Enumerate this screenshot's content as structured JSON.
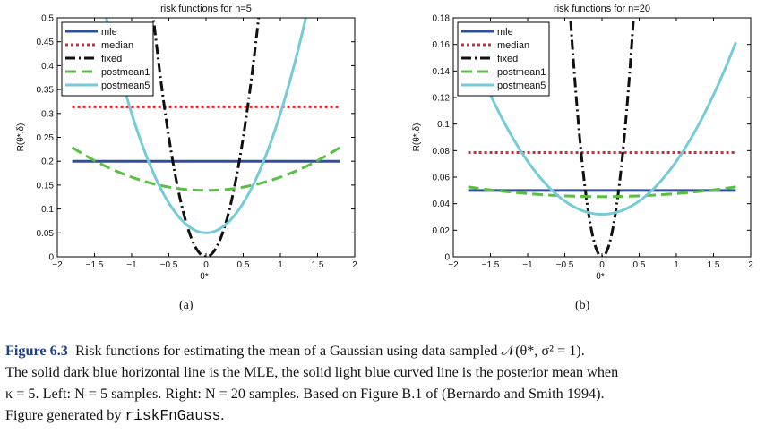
{
  "chart_data": [
    {
      "type": "line",
      "title": "risk functions for n=5",
      "xlabel": "θ*",
      "ylabel": "R(θ*,δ)",
      "xlim": [
        -2,
        2
      ],
      "ylim": [
        0,
        0.5
      ],
      "xticks": [
        -2,
        -1.5,
        -1,
        -0.5,
        0,
        0.5,
        1,
        1.5,
        2
      ],
      "xtick_labels": [
        "−2",
        "−1.5",
        "−1",
        "−0.5",
        "0",
        "0.5",
        "1",
        "1.5",
        "2"
      ],
      "yticks": [
        0,
        0.05,
        0.1,
        0.15,
        0.2,
        0.25,
        0.3,
        0.35,
        0.4,
        0.45,
        0.5
      ],
      "ytick_labels": [
        "0",
        "0.05",
        "0.1",
        "0.15",
        "0.2",
        "0.25",
        "0.3",
        "0.35",
        "0.4",
        "0.45",
        "0.5"
      ],
      "grid": false,
      "legend_position": "top-left",
      "x": [
        -1.8,
        -1.6,
        -1.4,
        -1.2,
        -1.0,
        -0.8,
        -0.6,
        -0.4,
        -0.2,
        0.0,
        0.2,
        0.4,
        0.6,
        0.8,
        1.0,
        1.2,
        1.4,
        1.6,
        1.8
      ],
      "series": [
        {
          "name": "mle",
          "color": "#2e4fa0",
          "style": "solid",
          "values": [
            0.2,
            0.2,
            0.2,
            0.2,
            0.2,
            0.2,
            0.2,
            0.2,
            0.2,
            0.2,
            0.2,
            0.2,
            0.2,
            0.2,
            0.2,
            0.2,
            0.2,
            0.2,
            0.2
          ]
        },
        {
          "name": "median",
          "color": "#e8222e",
          "style": "dotted",
          "values": [
            0.314,
            0.314,
            0.314,
            0.314,
            0.314,
            0.314,
            0.314,
            0.314,
            0.314,
            0.314,
            0.314,
            0.314,
            0.314,
            0.314,
            0.314,
            0.314,
            0.314,
            0.314,
            0.314
          ]
        },
        {
          "name": "fixed",
          "color": "#111111",
          "style": "dashdot",
          "values": [
            null,
            null,
            null,
            null,
            null,
            null,
            0.36,
            0.16,
            0.04,
            0.0,
            0.04,
            0.16,
            0.36,
            null,
            null,
            null,
            null,
            null,
            null
          ]
        },
        {
          "name": "postmean1",
          "color": "#5bbf45",
          "style": "dashed",
          "values": [
            0.229,
            0.209,
            0.191,
            0.176,
            0.163,
            0.153,
            0.146,
            0.141,
            0.139,
            0.139,
            0.139,
            0.141,
            0.146,
            0.153,
            0.163,
            0.176,
            0.191,
            0.209,
            0.229
          ]
        },
        {
          "name": "postmean5",
          "color": "#76cbd9",
          "style": "solid",
          "values": [
            null,
            null,
            0.484,
            0.409,
            0.319,
            0.229,
            0.139,
            0.094,
            0.059,
            0.049,
            0.059,
            0.094,
            0.139,
            0.229,
            0.319,
            0.409,
            0.484,
            null,
            null
          ]
        }
      ]
    },
    {
      "type": "line",
      "title": "risk functions for n=20",
      "xlabel": "θ*",
      "ylabel": "R(θ*,δ)",
      "xlim": [
        -2,
        2
      ],
      "ylim": [
        0,
        0.18
      ],
      "xticks": [
        -2,
        -1.5,
        -1,
        -0.5,
        0,
        0.5,
        1,
        1.5,
        2
      ],
      "xtick_labels": [
        "−2",
        "−1.5",
        "−1",
        "−0.5",
        "0",
        "0.5",
        "1",
        "1.5",
        "2"
      ],
      "yticks": [
        0,
        0.02,
        0.04,
        0.06,
        0.08,
        0.1,
        0.12,
        0.14,
        0.16,
        0.18
      ],
      "ytick_labels": [
        "0",
        "0.02",
        "0.04",
        "0.06",
        "0.08",
        "0.1",
        "0.12",
        "0.14",
        "0.16",
        "0.18"
      ],
      "grid": false,
      "legend_position": "top-left",
      "x": [
        -1.8,
        -1.6,
        -1.4,
        -1.2,
        -1.0,
        -0.8,
        -0.6,
        -0.4,
        -0.2,
        0.0,
        0.2,
        0.4,
        0.6,
        0.8,
        1.0,
        1.2,
        1.4,
        1.6,
        1.8
      ],
      "series": [
        {
          "name": "mle",
          "color": "#2e4fa0",
          "style": "solid",
          "values": [
            0.05,
            0.05,
            0.05,
            0.05,
            0.05,
            0.05,
            0.05,
            0.05,
            0.05,
            0.05,
            0.05,
            0.05,
            0.05,
            0.05,
            0.05,
            0.05,
            0.05,
            0.05,
            0.05
          ]
        },
        {
          "name": "median",
          "color": "#e8222e",
          "style": "dotted",
          "values": [
            0.0785,
            0.0785,
            0.0785,
            0.0785,
            0.0785,
            0.0785,
            0.0785,
            0.0785,
            0.0785,
            0.0785,
            0.0785,
            0.0785,
            0.0785,
            0.0785,
            0.0785,
            0.0785,
            0.0785,
            0.0785,
            0.0785
          ]
        },
        {
          "name": "fixed",
          "color": "#111111",
          "style": "dashdot",
          "values": [
            null,
            null,
            null,
            null,
            null,
            null,
            null,
            0.16,
            0.04,
            0.0,
            0.04,
            0.16,
            null,
            null,
            null,
            null,
            null,
            null,
            null
          ]
        },
        {
          "name": "postmean1",
          "color": "#5bbf45",
          "style": "dashed",
          "values": [
            0.0533,
            0.0512,
            0.0494,
            0.0479,
            0.0466,
            0.0456,
            0.0449,
            0.0444,
            0.0441,
            0.044,
            0.0441,
            0.0444,
            0.0449,
            0.0456,
            0.0466,
            0.0479,
            0.0494,
            0.0512,
            0.0533
          ]
        },
        {
          "name": "postmean5",
          "color": "#76cbd9",
          "style": "solid",
          "values": [
            null,
            null,
            null,
            0.179,
            0.144,
            0.108,
            0.08,
            0.056,
            0.04,
            0.033,
            0.04,
            0.056,
            0.08,
            0.108,
            0.144,
            0.179,
            null,
            null,
            0.161
          ]
        }
      ]
    }
  ],
  "subcaptions": [
    "(a)",
    "(b)"
  ],
  "caption": {
    "label": "Figure 6.3",
    "line1": "Risk functions for estimating the mean of a Gaussian using data sampled 𝒩(θ*, σ² = 1).",
    "line2": "The solid dark blue horizontal line is the MLE, the solid light blue curved line is the posterior mean when",
    "line3a": "κ = 5. Left: N = 5 samples. Right: N = 20 samples. Based on Figure B.1 of (Bernardo and Smith 1994).",
    "line4a": "Figure generated by ",
    "code": "riskFnGauss",
    "line4b": "."
  }
}
